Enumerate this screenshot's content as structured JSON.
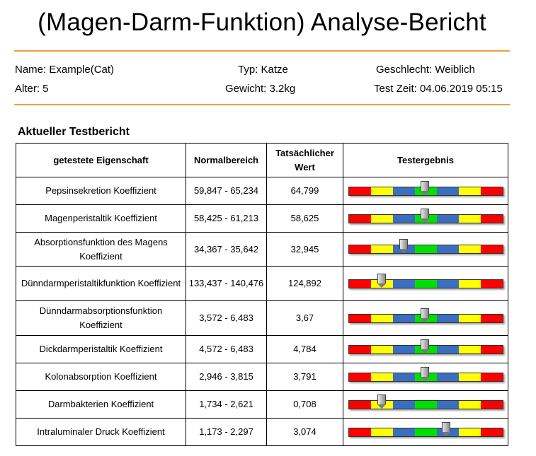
{
  "title": "(Magen-Darm-Funktion) Analyse-Bericht",
  "info": {
    "name": "Name: Example(Cat)",
    "typ": "Typ: Katze",
    "geschlecht": "Geschlecht: Weiblich",
    "alter": "Alter: 5",
    "gewicht": "Gewicht: 3.2kg",
    "test_zeit": "Test Zeit: 04.06.2019 05:15"
  },
  "section_title": "Aktueller Testbericht",
  "table": {
    "headers": [
      "getestete Eigenschaft",
      "Normalbereich",
      "Tatsächlicher Wert",
      "Testergebnis"
    ],
    "rows": [
      {
        "property": "Pepsinsekretion Koeffizient",
        "range": "59,847 - 65,234",
        "value": "64,799",
        "position": 0.495
      },
      {
        "property": "Magenperistaltik Koeffizient",
        "range": "58,425 - 61,213",
        "value": "58,625",
        "position": 0.495
      },
      {
        "property": "Absorptionsfunktion des Magens Koeffizient",
        "range": "34,367 - 35,642",
        "value": "32,945",
        "position": 0.355
      },
      {
        "property": "Dünndarmperistaltikfunktion Koeffizient",
        "range": "133,437 - 140,476",
        "value": "124,892",
        "position": 0.215
      },
      {
        "property": "Dünndarmabsorptionsfunktion Koeffizient",
        "range": "3,572 - 6,483",
        "value": "3,67",
        "position": 0.495
      },
      {
        "property": "Dickdarmperistaltik Koeffizient",
        "range": "4,572 - 6,483",
        "value": "4,784",
        "position": 0.495
      },
      {
        "property": "Kolonabsorption Koeffizient",
        "range": "2,946 - 3,815",
        "value": "3,791",
        "position": 0.495
      },
      {
        "property": "Darmbakterien Koeffizient",
        "range": "1,734 - 2,621",
        "value": "0,708",
        "position": 0.215
      },
      {
        "property": "Intraluminaler Druck Koeffizient",
        "range": "1,173 - 2,297",
        "value": "3,074",
        "position": 0.635
      }
    ]
  },
  "gauge_colors": [
    "#ff0000",
    "#ffff00",
    "#3a6fbf",
    "#00e000",
    "#3a6fbf",
    "#ffff00",
    "#ff0000"
  ],
  "accent_color": "#f0a040"
}
